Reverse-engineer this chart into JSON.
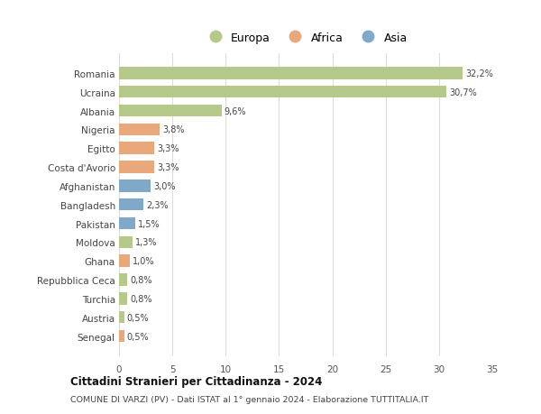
{
  "countries": [
    "Romania",
    "Ucraina",
    "Albania",
    "Nigeria",
    "Egitto",
    "Costa d'Avorio",
    "Afghanistan",
    "Bangladesh",
    "Pakistan",
    "Moldova",
    "Ghana",
    "Repubblica Ceca",
    "Turchia",
    "Austria",
    "Senegal"
  ],
  "values": [
    32.2,
    30.7,
    9.6,
    3.8,
    3.3,
    3.3,
    3.0,
    2.3,
    1.5,
    1.3,
    1.0,
    0.8,
    0.8,
    0.5,
    0.5
  ],
  "labels": [
    "32,2%",
    "30,7%",
    "9,6%",
    "3,8%",
    "3,3%",
    "3,3%",
    "3,0%",
    "2,3%",
    "1,5%",
    "1,3%",
    "1,0%",
    "0,8%",
    "0,8%",
    "0,5%",
    "0,5%"
  ],
  "continents": [
    "Europa",
    "Europa",
    "Europa",
    "Africa",
    "Africa",
    "Africa",
    "Asia",
    "Asia",
    "Asia",
    "Europa",
    "Africa",
    "Europa",
    "Europa",
    "Europa",
    "Africa"
  ],
  "colors": {
    "Europa": "#b5c98a",
    "Africa": "#e8a87c",
    "Asia": "#7fa8c9"
  },
  "title": "Cittadini Stranieri per Cittadinanza - 2024",
  "subtitle": "COMUNE DI VARZI (PV) - Dati ISTAT al 1° gennaio 2024 - Elaborazione TUTTITALIA.IT",
  "xlim": [
    0,
    35
  ],
  "xticks": [
    0,
    5,
    10,
    15,
    20,
    25,
    30,
    35
  ],
  "background_color": "#ffffff",
  "grid_color": "#dddddd",
  "bar_height": 0.65
}
